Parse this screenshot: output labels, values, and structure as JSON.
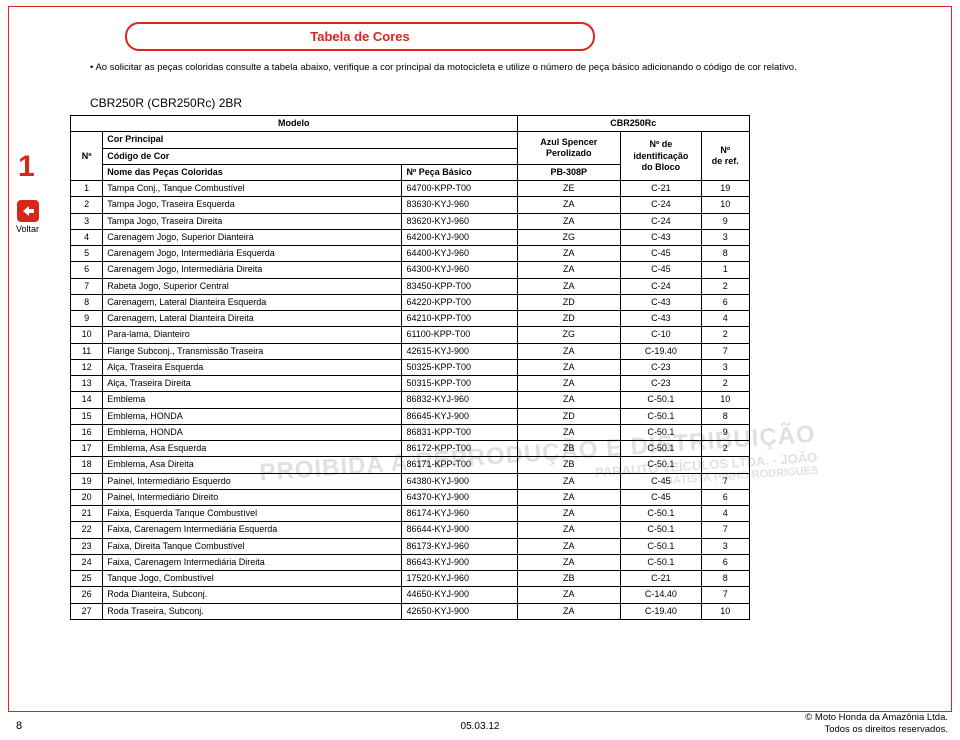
{
  "title": "Tabela de Cores",
  "intro_bullet": "• Ao solicitar as peças coloridas consulte a tabela abaixo, verifique a cor principal da motocicleta e utilize o número de peça básico adicionando o código de cor relativo.",
  "model_line": "CBR250R (CBR250Rᴄ) 2BR",
  "sidebar_number": "1",
  "voltar_label": "Voltar",
  "head": {
    "modelo": "Modelo",
    "cbr": "CBR250Rᴄ",
    "num": "Nº",
    "cor_principal": "Cor Principal",
    "codigo_cor": "Código de Cor",
    "nome_pecas": "Nome das Peças Coloridas",
    "n_peca": "Nº Peça Básico",
    "azul": "Azul Spencer\nPerolizado",
    "pb": "PB-308P",
    "n_ident": "Nº de\nidentificação\ndo Bloco",
    "n_ref": "Nº\nde ref."
  },
  "rows": [
    {
      "n": "1",
      "nome": "Tampa Conj., Tanque Combustível",
      "peca": "64700-KPP-T00",
      "c": "ZE",
      "b": "C-21",
      "r": "19"
    },
    {
      "n": "2",
      "nome": "Tampa Jogo, Traseira Esquerda",
      "peca": "83630-KYJ-960",
      "c": "ZA",
      "b": "C-24",
      "r": "10"
    },
    {
      "n": "3",
      "nome": "Tampa Jogo, Traseira Direita",
      "peca": "83620-KYJ-960",
      "c": "ZA",
      "b": "C-24",
      "r": "9"
    },
    {
      "n": "4",
      "nome": "Carenagem Jogo, Superior Dianteira",
      "peca": "64200-KYJ-900",
      "c": "ZG",
      "b": "C-43",
      "r": "3"
    },
    {
      "n": "5",
      "nome": "Carenagem Jogo, Intermediária Esquerda",
      "peca": "64400-KYJ-960",
      "c": "ZA",
      "b": "C-45",
      "r": "8"
    },
    {
      "n": "6",
      "nome": "Carenagem Jogo, Intermediária Direita",
      "peca": "64300-KYJ-960",
      "c": "ZA",
      "b": "C-45",
      "r": "1"
    },
    {
      "n": "7",
      "nome": "Rabeta Jogo, Superior Central",
      "peca": "83450-KPP-T00",
      "c": "ZA",
      "b": "C-24",
      "r": "2"
    },
    {
      "n": "8",
      "nome": "Carenagem, Lateral Dianteira Esquerda",
      "peca": "64220-KPP-T00",
      "c": "ZD",
      "b": "C-43",
      "r": "6"
    },
    {
      "n": "9",
      "nome": "Carenagem, Lateral Dianteira Direita",
      "peca": "64210-KPP-T00",
      "c": "ZD",
      "b": "C-43",
      "r": "4"
    },
    {
      "n": "10",
      "nome": "Para-lama, Dianteiro",
      "peca": "61100-KPP-T00",
      "c": "ZG",
      "b": "C-10",
      "r": "2"
    },
    {
      "n": "11",
      "nome": "Flange Subconj., Transmissão Traseira",
      "peca": "42615-KYJ-900",
      "c": "ZA",
      "b": "C-19.40",
      "r": "7"
    },
    {
      "n": "12",
      "nome": "Alça, Traseira Esquerda",
      "peca": "50325-KPP-T00",
      "c": "ZA",
      "b": "C-23",
      "r": "3"
    },
    {
      "n": "13",
      "nome": "Alça, Traseira Direita",
      "peca": "50315-KPP-T00",
      "c": "ZA",
      "b": "C-23",
      "r": "2"
    },
    {
      "n": "14",
      "nome": "Emblema",
      "peca": "86832-KYJ-960",
      "c": "ZA",
      "b": "C-50.1",
      "r": "10"
    },
    {
      "n": "15",
      "nome": "Emblema, HONDA",
      "peca": "86645-KYJ-900",
      "c": "ZD",
      "b": "C-50.1",
      "r": "8"
    },
    {
      "n": "16",
      "nome": "Emblema, HONDA",
      "peca": "86831-KPP-T00",
      "c": "ZA",
      "b": "C-50.1",
      "r": "9"
    },
    {
      "n": "17",
      "nome": "Emblema, Asa Esquerda",
      "peca": "86172-KPP-T00",
      "c": "ZB",
      "b": "C-50.1",
      "r": "2"
    },
    {
      "n": "18",
      "nome": "Emblema, Asa Direita",
      "peca": "86171-KPP-T00",
      "c": "ZB",
      "b": "C-50.1",
      "r": ""
    },
    {
      "n": "19",
      "nome": "Painel, Intermediário Esquerdo",
      "peca": "64380-KYJ-900",
      "c": "ZA",
      "b": "C-45",
      "r": "7"
    },
    {
      "n": "20",
      "nome": "Painel, Intermediário Direito",
      "peca": "64370-KYJ-900",
      "c": "ZA",
      "b": "C-45",
      "r": "6"
    },
    {
      "n": "21",
      "nome": "Faixa, Esquerda Tanque Combustível",
      "peca": "86174-KYJ-960",
      "c": "ZA",
      "b": "C-50.1",
      "r": "4"
    },
    {
      "n": "22",
      "nome": "Faixa, Carenagem Intermediária Esquerda",
      "peca": "86644-KYJ-900",
      "c": "ZA",
      "b": "C-50.1",
      "r": "7"
    },
    {
      "n": "23",
      "nome": "Faixa, Direita Tanque Combustível",
      "peca": "86173-KYJ-960",
      "c": "ZA",
      "b": "C-50.1",
      "r": "3"
    },
    {
      "n": "24",
      "nome": "Faixa, Carenagem Intermediária Direita",
      "peca": "86643-KYJ-900",
      "c": "ZA",
      "b": "C-50.1",
      "r": "6"
    },
    {
      "n": "25",
      "nome": "Tanque Jogo, Combustível",
      "peca": "17520-KYJ-960",
      "c": "ZB",
      "b": "C-21",
      "r": "8"
    },
    {
      "n": "26",
      "nome": "Roda Dianteira, Subconj.",
      "peca": "44650-KYJ-900",
      "c": "ZA",
      "b": "C-14.40",
      "r": "7"
    },
    {
      "n": "27",
      "nome": "Roda Traseira, Subconj.",
      "peca": "42650-KYJ-900",
      "c": "ZA",
      "b": "C-19.40",
      "r": "10"
    }
  ],
  "watermark": {
    "l1": "PROIBIDA A REPRODUÇÃO E DISTRIBUIÇÃO",
    "l2": "PARAUTO VEÍCULOS LTDA. - JOÃO",
    "l3": "BATISTA PINHO RODRIGUES"
  },
  "footer": {
    "page_num": "8",
    "date": "05.03.12",
    "copyright1": "© Moto Honda da Amazônia Ltda.",
    "copyright2": "Todos os direitos reservados."
  },
  "colors": {
    "accent": "#d9261c",
    "text": "#000000"
  }
}
